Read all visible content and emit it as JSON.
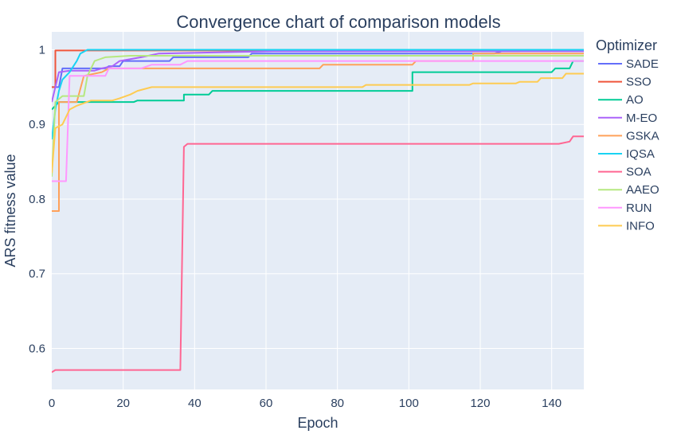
{
  "chart_data": {
    "type": "line",
    "title": "Convergence chart of comparison models",
    "xlabel": "Epoch",
    "ylabel": "ARS fitness value",
    "xlim": [
      0,
      149
    ],
    "ylim": [
      0.545,
      1.024
    ],
    "x_ticks": [
      0,
      20,
      40,
      60,
      80,
      100,
      120,
      140
    ],
    "y_ticks": [
      0.6,
      0.7,
      0.8,
      0.9,
      1
    ],
    "y_tick_labels": [
      "0.6",
      "0.7",
      "0.8",
      "0.9",
      "1"
    ],
    "grid": true,
    "plot_background": "#e5ecf6",
    "legend": {
      "title": "Optimizer",
      "placement": "right"
    },
    "series": [
      {
        "name": "SADE",
        "color": "#636efa",
        "points": [
          [
            0,
            0.95
          ],
          [
            2,
            0.95
          ],
          [
            3,
            0.975
          ],
          [
            15,
            0.975
          ],
          [
            16,
            0.978
          ],
          [
            19,
            0.978
          ],
          [
            20,
            0.985
          ],
          [
            33,
            0.985
          ],
          [
            34,
            0.99
          ],
          [
            55,
            0.99
          ],
          [
            56,
            0.995
          ],
          [
            124,
            0.995
          ],
          [
            126,
            0.998
          ],
          [
            131,
            0.998
          ],
          [
            132,
            1.0
          ],
          [
            149,
            1.0
          ]
        ]
      },
      {
        "name": "SSO",
        "color": "#ef553b",
        "points": [
          [
            0,
            0.95
          ],
          [
            1,
            0.95
          ],
          [
            1,
            0.999
          ],
          [
            149,
            0.999
          ]
        ]
      },
      {
        "name": "AO",
        "color": "#00cc96",
        "points": [
          [
            0,
            0.92
          ],
          [
            1,
            0.925
          ],
          [
            2,
            0.93
          ],
          [
            23,
            0.93
          ],
          [
            24,
            0.932
          ],
          [
            37,
            0.932
          ],
          [
            37,
            0.94
          ],
          [
            44,
            0.94
          ],
          [
            45,
            0.945
          ],
          [
            101,
            0.945
          ],
          [
            101,
            0.97
          ],
          [
            140,
            0.97
          ],
          [
            141,
            0.975
          ],
          [
            145,
            0.975
          ],
          [
            146,
            0.985
          ],
          [
            149,
            0.985
          ]
        ]
      },
      {
        "name": "M-EO",
        "color": "#ab63fa",
        "points": [
          [
            0,
            0.93
          ],
          [
            2,
            0.97
          ],
          [
            5,
            0.972
          ],
          [
            12,
            0.972
          ],
          [
            14,
            0.975
          ],
          [
            17,
            0.978
          ],
          [
            19,
            0.985
          ],
          [
            25,
            0.99
          ],
          [
            30,
            0.995
          ],
          [
            62,
            0.998
          ],
          [
            149,
            0.998
          ]
        ]
      },
      {
        "name": "GSKA",
        "color": "#ffa15a",
        "points": [
          [
            0,
            0.784
          ],
          [
            2,
            0.784
          ],
          [
            2,
            0.93
          ],
          [
            7,
            0.93
          ],
          [
            9,
            0.965
          ],
          [
            14,
            0.97
          ],
          [
            16,
            0.975
          ],
          [
            75,
            0.975
          ],
          [
            76,
            0.98
          ],
          [
            101,
            0.98
          ],
          [
            102,
            0.985
          ],
          [
            118,
            0.985
          ],
          [
            118,
            0.995
          ],
          [
            149,
            0.995
          ]
        ]
      },
      {
        "name": "IQSA",
        "color": "#19d3f3",
        "points": [
          [
            0,
            0.88
          ],
          [
            1,
            0.92
          ],
          [
            2,
            0.945
          ],
          [
            3,
            0.96
          ],
          [
            5,
            0.97
          ],
          [
            7,
            0.985
          ],
          [
            8,
            0.995
          ],
          [
            10,
            1.0
          ],
          [
            149,
            1.0
          ]
        ]
      },
      {
        "name": "SOA",
        "color": "#ff6692",
        "points": [
          [
            0,
            0.568
          ],
          [
            1,
            0.571
          ],
          [
            36,
            0.571
          ],
          [
            37,
            0.87
          ],
          [
            38,
            0.874
          ],
          [
            142,
            0.874
          ],
          [
            145,
            0.877
          ],
          [
            146,
            0.884
          ],
          [
            149,
            0.884
          ]
        ]
      },
      {
        "name": "AAEO",
        "color": "#b6e880",
        "points": [
          [
            0,
            0.83
          ],
          [
            1,
            0.93
          ],
          [
            3,
            0.938
          ],
          [
            9,
            0.938
          ],
          [
            10,
            0.965
          ],
          [
            12,
            0.985
          ],
          [
            15,
            0.99
          ],
          [
            22,
            0.992
          ],
          [
            149,
            0.992
          ]
        ]
      },
      {
        "name": "RUN",
        "color": "#ff97ff",
        "points": [
          [
            0,
            0.824
          ],
          [
            4,
            0.824
          ],
          [
            5,
            0.965
          ],
          [
            15,
            0.965
          ],
          [
            16,
            0.975
          ],
          [
            25,
            0.975
          ],
          [
            28,
            0.98
          ],
          [
            36,
            0.98
          ],
          [
            38,
            0.985
          ],
          [
            149,
            0.985
          ]
        ]
      },
      {
        "name": "INFO",
        "color": "#fecb52",
        "points": [
          [
            0,
            0.835
          ],
          [
            1,
            0.895
          ],
          [
            3,
            0.9
          ],
          [
            5,
            0.92
          ],
          [
            7,
            0.925
          ],
          [
            11,
            0.932
          ],
          [
            17,
            0.932
          ],
          [
            19,
            0.935
          ],
          [
            22,
            0.94
          ],
          [
            24,
            0.945
          ],
          [
            28,
            0.95
          ],
          [
            87,
            0.95
          ],
          [
            88,
            0.953
          ],
          [
            117,
            0.953
          ],
          [
            118,
            0.955
          ],
          [
            130,
            0.955
          ],
          [
            131,
            0.957
          ],
          [
            136,
            0.957
          ],
          [
            137,
            0.962
          ],
          [
            143,
            0.962
          ],
          [
            144,
            0.968
          ],
          [
            149,
            0.968
          ]
        ]
      }
    ]
  }
}
